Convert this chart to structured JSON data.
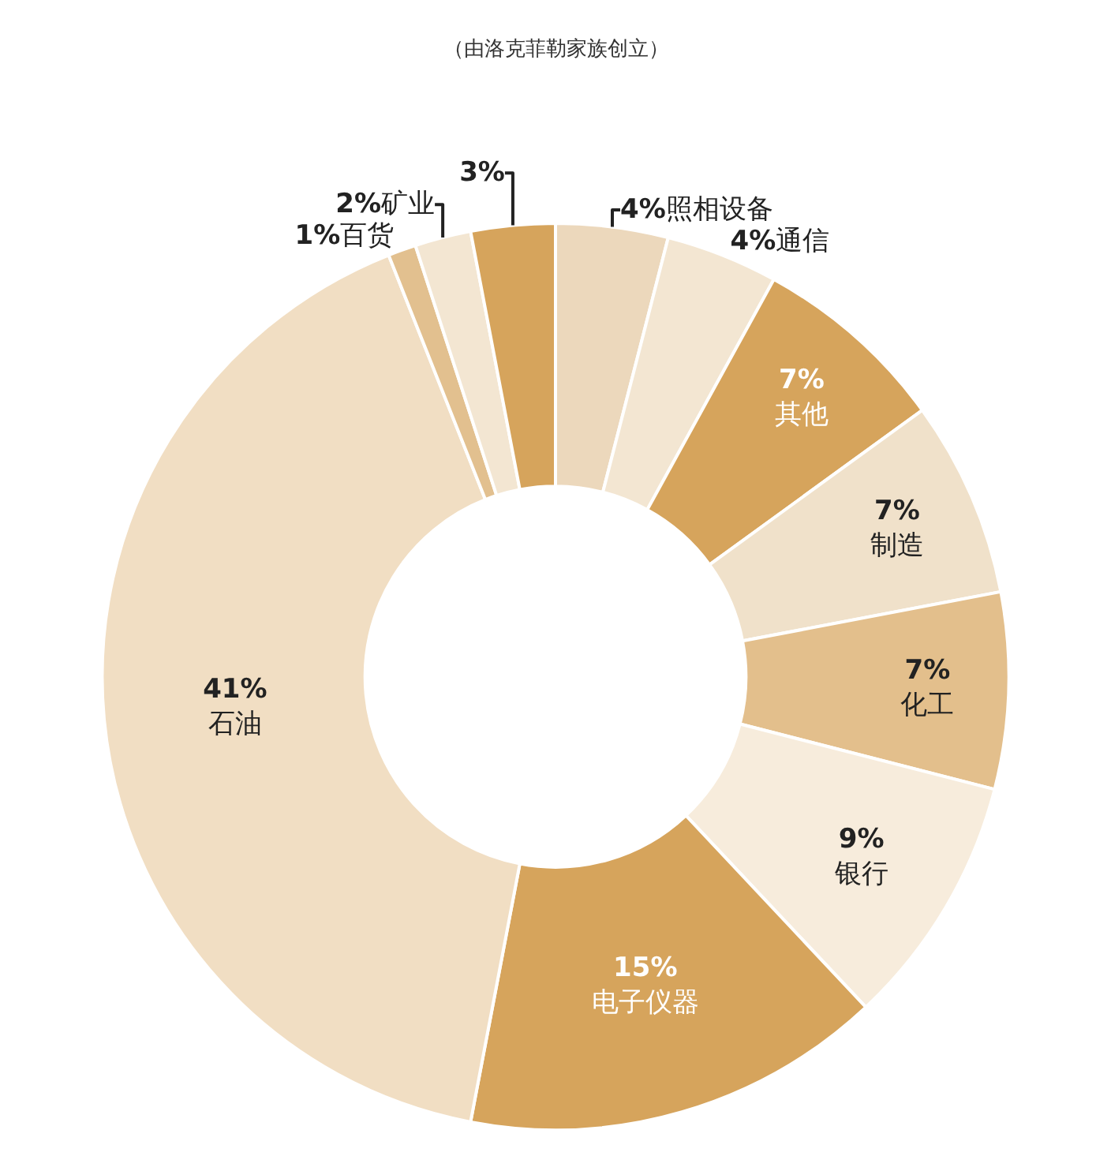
{
  "chart_data": {
    "type": "donut",
    "categories": [
      "照相设备",
      "通信",
      "其他",
      "制造",
      "化工",
      "银行",
      "电子仪器",
      "石油",
      "百货",
      "矿业",
      null
    ],
    "values": [
      4,
      4,
      7,
      7,
      7,
      9,
      15,
      41,
      1,
      2,
      3
    ],
    "value_labels": [
      "4%",
      "4%",
      "7%",
      "7%",
      "7%",
      "9%",
      "15%",
      "41%",
      "1%",
      "2%",
      "3%"
    ],
    "colors": [
      "#ecd8bc",
      "#f3e6d2",
      "#d6a45c",
      "#f0e1ca",
      "#e3bf8c",
      "#f7ecdc",
      "#d6a45c",
      "#f1dec3",
      "#e2c08f",
      "#f3e6d2",
      "#d6a45c"
    ],
    "annotations": [
      "（由洛克菲勒家族创立）"
    ]
  }
}
